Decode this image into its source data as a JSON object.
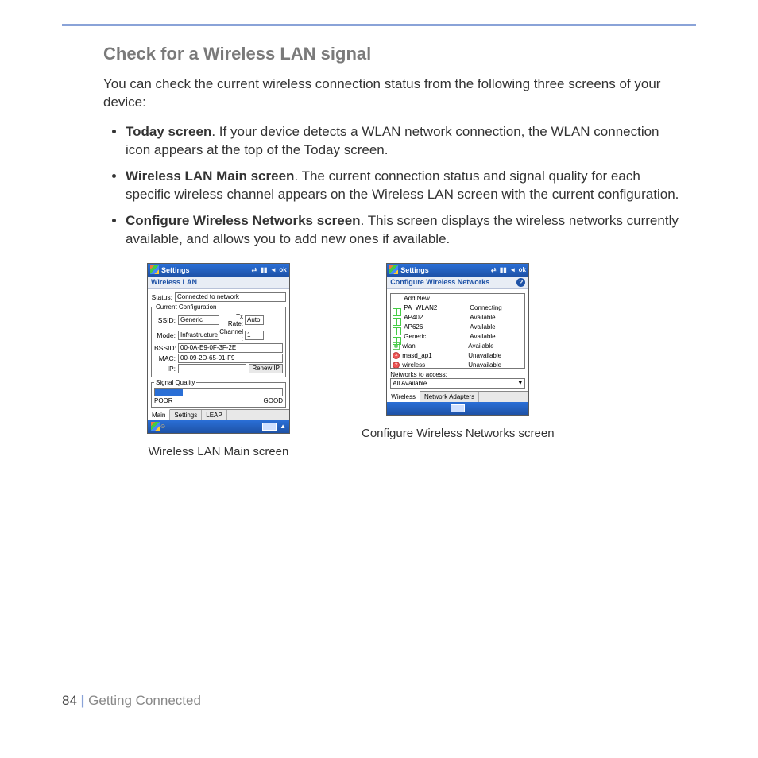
{
  "heading": "Check for a Wireless LAN signal",
  "intro": "You can check the current wireless connection status from the following three screens of your device:",
  "bullets": [
    {
      "title": "Today screen",
      "rest": ". If your device detects a WLAN network connection, the WLAN connection icon appears at the top of the Today screen."
    },
    {
      "title": "Wireless LAN Main screen",
      "rest": ". The current connection status and signal quality for each specific wireless channel appears on the Wireless LAN screen with the current configuration."
    },
    {
      "title": "Configure Wireless Networks screen",
      "rest": ". This screen displays the wireless networks currently available, and allows you to add new ones if available."
    }
  ],
  "caption1": "Wireless LAN Main screen",
  "caption2": "Configure Wireless Networks screen",
  "footer": {
    "page": "84",
    "section": "Getting Connected"
  },
  "phone1": {
    "title": "Settings",
    "ok": "ok",
    "subtitle": "Wireless LAN",
    "status_label": "Status:",
    "status_value": "Connected to network",
    "grp_config": "Current Configuration",
    "ssid_label": "SSID:",
    "ssid_value": "Generic",
    "txrate_label": "Tx Rate:",
    "txrate_value": "Auto",
    "mode_label": "Mode:",
    "mode_value": "Infrastructure",
    "channel_label": "Channel :",
    "channel_value": "1",
    "bssid_label": "BSSID:",
    "bssid_value": "00-0A-E9-0F-3F-2E",
    "mac_label": "MAC:",
    "mac_value": "00-09-2D-65-01-F9",
    "ip_label": "IP:",
    "ip_value": "",
    "renew_btn": "Renew IP",
    "grp_signal": "Signal Quality",
    "poor": "POOR",
    "good": "GOOD",
    "signal_percent": 22,
    "tabs": [
      "Main",
      "Settings",
      "LEAP"
    ]
  },
  "phone2": {
    "title": "Settings",
    "ok": "ok",
    "subtitle": "Configure Wireless Networks",
    "addnew": "Add New...",
    "networks": [
      {
        "icon": "pair",
        "name": "PA_WLAN2",
        "status": "Connecting"
      },
      {
        "icon": "pair",
        "name": "AP402",
        "status": "Available"
      },
      {
        "icon": "pair",
        "name": "AP626",
        "status": "Available"
      },
      {
        "icon": "pair",
        "name": "Generic",
        "status": "Available"
      },
      {
        "icon": "single",
        "name": "wlan",
        "status": "Available"
      },
      {
        "icon": "red",
        "name": "masd_ap1",
        "status": "Unavailable"
      },
      {
        "icon": "red",
        "name": "wireless",
        "status": "Unavailable"
      }
    ],
    "access_label": "Networks to access:",
    "access_value": "All Available",
    "tabs": [
      "Wireless",
      "Network Adapters"
    ]
  }
}
